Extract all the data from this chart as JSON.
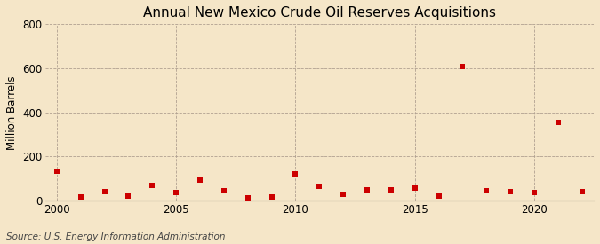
{
  "title": "Annual New Mexico Crude Oil Reserves Acquisitions",
  "ylabel": "Million Barrels",
  "source": "Source: U.S. Energy Information Administration",
  "background_color": "#f5e6c8",
  "plot_background_color": "#f5e6c8",
  "marker_color": "#cc0000",
  "marker": "s",
  "marker_size": 4,
  "xlim": [
    1999.5,
    2022.5
  ],
  "ylim": [
    0,
    800
  ],
  "yticks": [
    0,
    200,
    400,
    600,
    800
  ],
  "xticks": [
    2000,
    2005,
    2010,
    2015,
    2020
  ],
  "years": [
    2000,
    2001,
    2002,
    2003,
    2004,
    2005,
    2006,
    2007,
    2008,
    2009,
    2010,
    2011,
    2012,
    2013,
    2014,
    2015,
    2016,
    2017,
    2018,
    2019,
    2020,
    2021,
    2022
  ],
  "values": [
    135,
    15,
    42,
    20,
    70,
    38,
    95,
    45,
    12,
    18,
    120,
    65,
    30,
    48,
    50,
    58,
    20,
    610,
    45,
    40,
    35,
    355,
    40
  ]
}
